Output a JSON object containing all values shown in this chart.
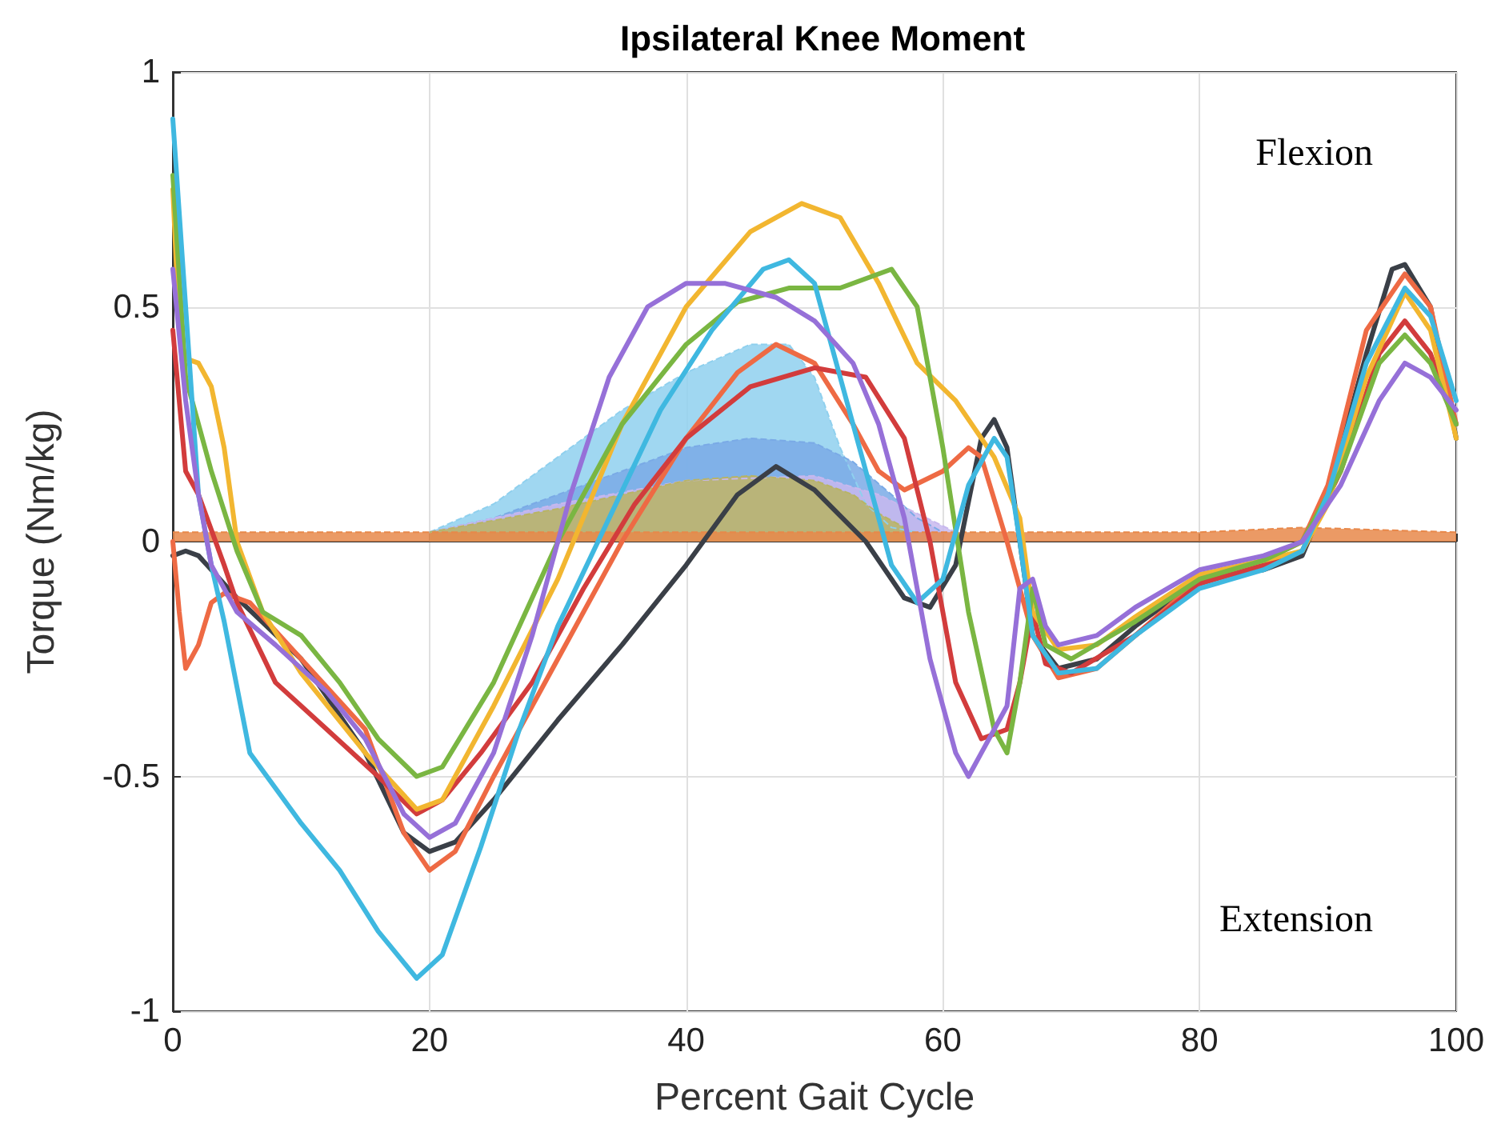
{
  "chart_data": {
    "type": "line",
    "title": "Ipsilateral Knee Moment",
    "xlabel": "Percent Gait Cycle",
    "ylabel": "Torque (Nm/kg)",
    "annotations": [
      "Flexion",
      "Extension"
    ],
    "xlim": [
      0,
      100
    ],
    "xticks": [
      0,
      20,
      40,
      60,
      80,
      100
    ],
    "ylim": [
      -1,
      1
    ],
    "yticks": [
      -1,
      -0.5,
      0,
      0.5,
      1
    ],
    "grid": true,
    "marker": "none",
    "line_style": "solid",
    "series": [
      {
        "type": "area",
        "color": "#8fd0ee",
        "x": [
          20,
          25,
          30,
          35,
          40,
          45,
          48,
          50,
          52,
          54,
          56,
          58
        ],
        "values": [
          0.02,
          0.08,
          0.18,
          0.28,
          0.36,
          0.42,
          0.42,
          0.35,
          0.2,
          0.08,
          0.03,
          0.02
        ]
      },
      {
        "type": "area",
        "color": "#7aaae6",
        "x": [
          20,
          25,
          30,
          35,
          40,
          45,
          50,
          53,
          56,
          58,
          60
        ],
        "values": [
          0.02,
          0.05,
          0.1,
          0.15,
          0.2,
          0.22,
          0.21,
          0.17,
          0.1,
          0.05,
          0.02
        ]
      },
      {
        "type": "area",
        "color": "#c8b8ee",
        "x": [
          20,
          30,
          40,
          50,
          55,
          58,
          61
        ],
        "values": [
          0.02,
          0.08,
          0.13,
          0.14,
          0.1,
          0.06,
          0.02
        ]
      },
      {
        "type": "area",
        "color": "#b8b464",
        "x": [
          20,
          30,
          35,
          40,
          45,
          50,
          53,
          55,
          57
        ],
        "values": [
          0.02,
          0.07,
          0.1,
          0.13,
          0.14,
          0.13,
          0.1,
          0.06,
          0.03
        ]
      },
      {
        "type": "area",
        "color": "#e8884a",
        "x": [
          0,
          20,
          50,
          80,
          88,
          100
        ],
        "values": [
          0.02,
          0.02,
          0.02,
          0.02,
          0.03,
          0.02
        ]
      },
      {
        "color": "#3a3f47",
        "x": [
          0,
          1,
          2,
          5,
          10,
          15,
          18,
          20,
          22,
          25,
          30,
          35,
          40,
          44,
          47,
          50,
          54,
          57,
          59,
          61,
          63,
          64,
          65,
          66,
          67,
          69,
          72,
          75,
          80,
          85,
          88,
          90,
          93,
          95,
          96,
          98,
          100
        ],
        "values": [
          -0.03,
          -0.02,
          -0.03,
          -0.12,
          -0.25,
          -0.45,
          -0.62,
          -0.66,
          -0.64,
          -0.55,
          -0.38,
          -0.22,
          -0.05,
          0.1,
          0.16,
          0.11,
          0,
          -0.12,
          -0.14,
          -0.05,
          0.22,
          0.26,
          0.2,
          0,
          -0.2,
          -0.27,
          -0.25,
          -0.18,
          -0.08,
          -0.06,
          -0.03,
          0.1,
          0.4,
          0.58,
          0.59,
          0.5,
          0.22
        ]
      },
      {
        "color": "#ee6a44",
        "x": [
          0,
          0.5,
          1,
          2,
          3,
          4,
          6,
          10,
          15,
          18,
          20,
          22,
          25,
          30,
          35,
          40,
          44,
          47,
          50,
          53,
          55,
          57,
          60,
          62,
          63,
          65,
          67,
          69,
          72,
          75,
          80,
          85,
          88,
          90,
          93,
          96,
          98,
          100
        ],
        "values": [
          0,
          -0.15,
          -0.27,
          -0.22,
          -0.13,
          -0.11,
          -0.13,
          -0.25,
          -0.4,
          -0.62,
          -0.7,
          -0.66,
          -0.5,
          -0.25,
          0,
          0.22,
          0.36,
          0.42,
          0.38,
          0.25,
          0.15,
          0.11,
          0.15,
          0.2,
          0.18,
          0,
          -0.2,
          -0.29,
          -0.27,
          -0.2,
          -0.08,
          -0.04,
          0,
          0.12,
          0.45,
          0.57,
          0.5,
          0.25
        ]
      },
      {
        "color": "#d23c3c",
        "x": [
          0,
          1,
          2,
          4,
          5,
          8,
          12,
          16,
          19,
          21,
          24,
          28,
          32,
          36,
          40,
          45,
          50,
          54,
          57,
          59,
          61,
          63,
          65,
          66,
          67,
          68,
          70,
          75,
          80,
          85,
          88,
          91,
          94,
          96,
          98,
          100
        ],
        "values": [
          0.45,
          0.15,
          0.1,
          -0.05,
          -0.13,
          -0.3,
          -0.4,
          -0.5,
          -0.58,
          -0.55,
          -0.45,
          -0.3,
          -0.1,
          0.08,
          0.22,
          0.33,
          0.37,
          0.35,
          0.22,
          0,
          -0.3,
          -0.42,
          -0.4,
          -0.3,
          -0.15,
          -0.26,
          -0.28,
          -0.2,
          -0.09,
          -0.05,
          -0.02,
          0.15,
          0.4,
          0.47,
          0.4,
          0.25
        ]
      },
      {
        "color": "#f2b630",
        "x": [
          0,
          0.5,
          1,
          2,
          3,
          4,
          5,
          7,
          10,
          15,
          19,
          21,
          25,
          30,
          35,
          40,
          45,
          49,
          52,
          55,
          58,
          61,
          64,
          66,
          67,
          69,
          72,
          75,
          80,
          85,
          88,
          90,
          93,
          96,
          98,
          100
        ],
        "values": [
          0.75,
          0.45,
          0.39,
          0.38,
          0.33,
          0.2,
          0,
          -0.15,
          -0.28,
          -0.45,
          -0.57,
          -0.55,
          -0.35,
          -0.08,
          0.25,
          0.5,
          0.66,
          0.72,
          0.69,
          0.55,
          0.38,
          0.3,
          0.18,
          0.05,
          -0.15,
          -0.23,
          -0.22,
          -0.16,
          -0.07,
          -0.04,
          -0.02,
          0.08,
          0.35,
          0.53,
          0.45,
          0.22
        ]
      },
      {
        "color": "#7ab642",
        "x": [
          0,
          1,
          3,
          5,
          7,
          10,
          13,
          16,
          19,
          21,
          25,
          30,
          35,
          40,
          44,
          48,
          52,
          56,
          58,
          60,
          62,
          64,
          65,
          66,
          67,
          68,
          70,
          75,
          80,
          85,
          88,
          91,
          94,
          96,
          98,
          100
        ],
        "values": [
          0.78,
          0.35,
          0.15,
          -0.02,
          -0.15,
          -0.2,
          -0.3,
          -0.42,
          -0.5,
          -0.48,
          -0.3,
          0,
          0.25,
          0.42,
          0.51,
          0.54,
          0.54,
          0.58,
          0.5,
          0.2,
          -0.15,
          -0.4,
          -0.45,
          -0.3,
          -0.1,
          -0.22,
          -0.25,
          -0.17,
          -0.08,
          -0.04,
          0,
          0.15,
          0.38,
          0.44,
          0.38,
          0.25
        ]
      },
      {
        "color": "#3fb8e0",
        "x": [
          0,
          2,
          3,
          4,
          6,
          10,
          13,
          16,
          19,
          21,
          24,
          27,
          30,
          34,
          38,
          42,
          46,
          48,
          50,
          53,
          56,
          58,
          60,
          62,
          64,
          65,
          66,
          67,
          69,
          72,
          75,
          80,
          85,
          88,
          90,
          93,
          96,
          98,
          100
        ],
        "values": [
          0.9,
          0.1,
          -0.05,
          -0.17,
          -0.45,
          -0.6,
          -0.7,
          -0.83,
          -0.93,
          -0.88,
          -0.65,
          -0.4,
          -0.18,
          0.05,
          0.28,
          0.45,
          0.58,
          0.6,
          0.55,
          0.25,
          -0.05,
          -0.13,
          -0.08,
          0.12,
          0.22,
          0.18,
          0,
          -0.2,
          -0.28,
          -0.27,
          -0.2,
          -0.1,
          -0.06,
          -0.02,
          0.1,
          0.38,
          0.54,
          0.48,
          0.3
        ]
      },
      {
        "color": "#9670d8",
        "x": [
          0,
          1,
          2,
          3,
          5,
          8,
          12,
          15,
          18,
          20,
          22,
          25,
          28,
          31,
          34,
          37,
          40,
          43,
          47,
          50,
          53,
          55,
          57,
          59,
          61,
          62,
          63,
          65,
          66,
          67,
          68,
          69,
          72,
          75,
          80,
          85,
          88,
          91,
          94,
          96,
          98,
          100
        ],
        "values": [
          0.58,
          0.3,
          0.1,
          -0.05,
          -0.15,
          -0.22,
          -0.32,
          -0.42,
          -0.58,
          -0.63,
          -0.6,
          -0.45,
          -0.2,
          0.1,
          0.35,
          0.5,
          0.55,
          0.55,
          0.52,
          0.47,
          0.38,
          0.25,
          0.05,
          -0.25,
          -0.45,
          -0.5,
          -0.45,
          -0.35,
          -0.1,
          -0.08,
          -0.18,
          -0.22,
          -0.2,
          -0.14,
          -0.06,
          -0.03,
          0,
          0.12,
          0.3,
          0.38,
          0.35,
          0.28
        ]
      }
    ]
  }
}
